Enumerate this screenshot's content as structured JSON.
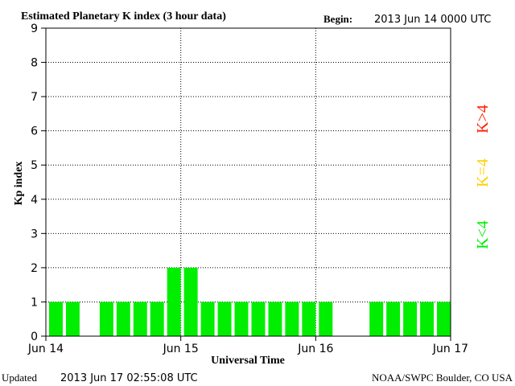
{
  "title": "Estimated Planetary K index (3 hour data)",
  "begin_label": "Begin:",
  "begin_value": "2013 Jun 14 0000 UTC",
  "updated_label": "Updated",
  "updated_value": "2013 Jun 17 02:55:08 UTC",
  "source": "NOAA/SWPC Boulder, CO USA",
  "legend": [
    {
      "label": "K>4",
      "color": "#ff2000"
    },
    {
      "label": "K=4",
      "color": "#ffd000"
    },
    {
      "label": "K<4",
      "color": "#00ee00"
    }
  ],
  "chart_data": {
    "type": "bar",
    "title": "Estimated Planetary K index (3 hour data)",
    "xlabel": "Universal Time",
    "ylabel": "Kp index",
    "ylim": [
      0,
      9
    ],
    "yticks": [
      0,
      1,
      2,
      3,
      4,
      5,
      6,
      7,
      8,
      9
    ],
    "xtick_labels": [
      "Jun 14",
      "Jun 15",
      "Jun 16",
      "Jun 17"
    ],
    "bar_interval_hours": 3,
    "values": [
      1,
      1,
      null,
      1,
      1,
      1,
      1,
      2,
      2,
      1,
      1,
      1,
      1,
      1,
      1,
      1,
      1,
      null,
      null,
      1,
      1,
      1,
      1,
      1
    ],
    "grid": true,
    "bar_color": "#00ee00"
  }
}
